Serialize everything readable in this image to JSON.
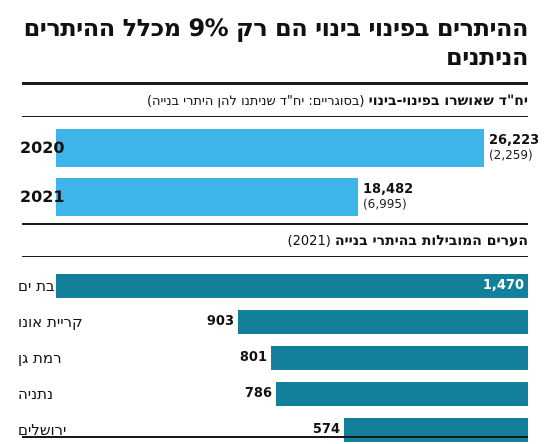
{
  "title": "ההיתרים בפינוי בינוי הם רק 9% מכלל ההיתרים הניתנים",
  "colors": {
    "bar_light": "#3db5e8",
    "bar_dark": "#12809a",
    "rule": "#1a1a1a",
    "text": "#111111"
  },
  "chart_data": [
    {
      "type": "bar",
      "orientation": "horizontal",
      "title": "יח\"ד שאושרו בפינוי-בינוי",
      "subtitle": "(בסוגריים: יח\"ד שניתנו להן היתרי בנייה)",
      "categories": [
        "2020",
        "2021"
      ],
      "series": [
        {
          "values": [
            26223,
            18482
          ]
        },
        {
          "values": [
            2259,
            6995
          ]
        }
      ],
      "value_labels": [
        "26,223",
        "18,482"
      ],
      "paren_labels": [
        "(2,259)",
        "(6,995)"
      ]
    },
    {
      "type": "bar",
      "orientation": "horizontal",
      "title": "הערים המובילות בהיתרי בנייה",
      "subtitle": "(2021)",
      "categories": [
        "בת ים",
        "קריית אונו",
        "רמת גן",
        "נתניה",
        "ירושלים"
      ],
      "values": [
        1470,
        903,
        801,
        786,
        574
      ],
      "value_labels": [
        "1,470",
        "903",
        "801",
        "786",
        "574"
      ]
    }
  ]
}
